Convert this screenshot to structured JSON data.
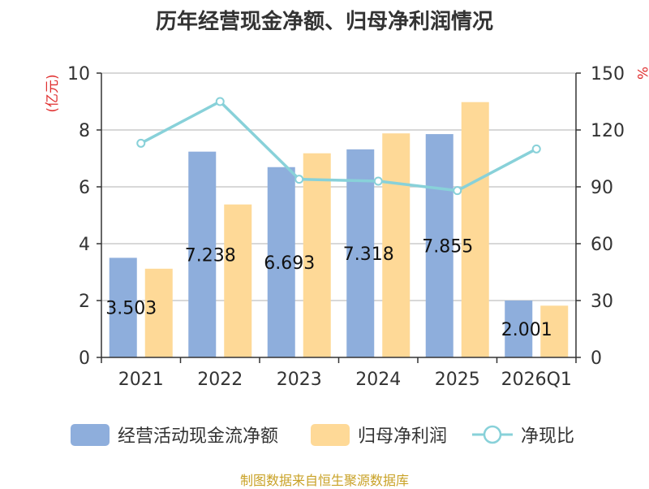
{
  "chart_data": {
    "type": "bar",
    "title": "历年经营现金净额、归母净利润情况",
    "categories": [
      "2021",
      "2022",
      "2023",
      "2024",
      "2025",
      "2026Q1"
    ],
    "left_axis": {
      "label": "(亿元)",
      "range": [
        0,
        10
      ],
      "ticks": [
        "0",
        "2",
        "4",
        "6",
        "8",
        "10"
      ]
    },
    "right_axis": {
      "label": "%",
      "range": [
        0,
        150
      ],
      "ticks": [
        "0",
        "30",
        "60",
        "90",
        "120",
        "150"
      ]
    },
    "series": [
      {
        "name": "经营活动现金流净额",
        "kind": "bar",
        "axis": "left",
        "color": "#8eaedc",
        "values": [
          3.503,
          7.238,
          6.693,
          7.318,
          7.855,
          2.001
        ],
        "labels": [
          "3.503",
          "7.238",
          "6.693",
          "7.318",
          "7.855",
          "2.001"
        ]
      },
      {
        "name": "归母净利润",
        "kind": "bar",
        "axis": "left",
        "color": "#fed997",
        "values": [
          3.12,
          5.38,
          7.18,
          7.88,
          8.98,
          1.82
        ]
      },
      {
        "name": "净现比",
        "kind": "line",
        "axis": "right",
        "color": "#88d1d9",
        "values": [
          113,
          135,
          94,
          93,
          88,
          110
        ]
      }
    ],
    "legend_position": "bottom",
    "grid": true
  },
  "source": "制图数据来自恒生聚源数据库"
}
